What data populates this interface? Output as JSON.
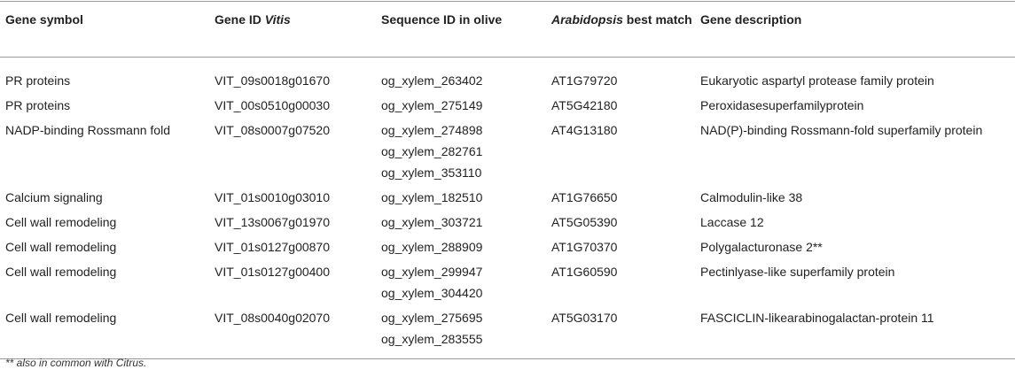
{
  "table": {
    "header": [
      [
        "Gene symbol"
      ],
      [
        "Gene ID ",
        "Vitis"
      ],
      [
        "Sequence ID in olive"
      ],
      [
        "Arabidopsis",
        " best match"
      ],
      [
        "Gene description"
      ]
    ],
    "rows": [
      {
        "symbol": "PR proteins",
        "gene_id": "VIT_09s0018g01670",
        "sequence_ids": [
          "og_xylem_263402"
        ],
        "match": "AT1G79720",
        "description": "Eukaryotic aspartyl protease family protein"
      },
      {
        "symbol": "PR proteins",
        "gene_id": "VIT_00s0510g00030",
        "sequence_ids": [
          "og_xylem_275149"
        ],
        "match": "AT5G42180",
        "description": "Peroxidasesuperfamilyprotein"
      },
      {
        "symbol": "NADP-binding Rossmann fold",
        "gene_id": "VIT_08s0007g07520",
        "sequence_ids": [
          "og_xylem_274898",
          "og_xylem_282761",
          "og_xylem_353110"
        ],
        "match": "AT4G13180",
        "description": "NAD(P)-binding Rossmann-fold superfamily protein"
      },
      {
        "symbol": "Calcium signaling",
        "gene_id": "VIT_01s0010g03010",
        "sequence_ids": [
          "og_xylem_182510"
        ],
        "match": "AT1G76650",
        "description": "Calmodulin-like 38"
      },
      {
        "symbol": "Cell wall remodeling",
        "gene_id": "VIT_13s0067g01970",
        "sequence_ids": [
          "og_xylem_303721"
        ],
        "match": "AT5G05390",
        "description": "Laccase 12"
      },
      {
        "symbol": "Cell wall remodeling",
        "gene_id": "VIT_01s0127g00870",
        "sequence_ids": [
          "og_xylem_288909"
        ],
        "match": "AT1G70370",
        "description": "Polygalacturonase 2**"
      },
      {
        "symbol": "Cell wall remodeling",
        "gene_id": "VIT_01s0127g00400",
        "sequence_ids": [
          "og_xylem_299947",
          "og_xylem_304420"
        ],
        "match": "AT1G60590",
        "description": "Pectinlyase-like superfamily protein"
      },
      {
        "symbol": "Cell wall remodeling",
        "gene_id": "VIT_08s0040g02070",
        "sequence_ids": [
          "og_xylem_275695",
          "og_xylem_283555"
        ],
        "match": "AT5G03170",
        "description": "FASCICLIN-likearabinogalactan-protein 11"
      }
    ],
    "footnote": [
      "** also in common with ",
      "Citrus",
      "."
    ]
  }
}
